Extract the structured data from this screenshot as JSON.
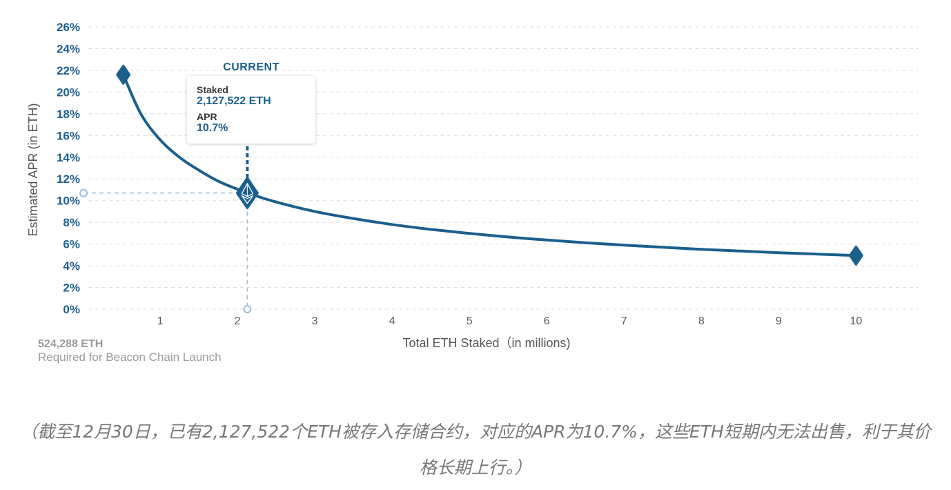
{
  "chart_data": {
    "type": "line",
    "xlabel": "Total ETH Staked（in millions)",
    "ylabel": "Estimated APR (in ETH)",
    "x_ticks": [
      "1",
      "2",
      "3",
      "4",
      "5",
      "6",
      "7",
      "8",
      "9",
      "10"
    ],
    "y_ticks": [
      "0%",
      "2%",
      "4%",
      "6%",
      "8%",
      "10%",
      "12%",
      "14%",
      "16%",
      "18%",
      "20%",
      "22%",
      "24%",
      "26%"
    ],
    "xlim": [
      0,
      10.8
    ],
    "ylim": [
      0,
      26
    ],
    "grid": "horizontal dashed",
    "series": [
      {
        "x": [
          0.524288,
          0.75,
          1.0,
          1.25,
          1.5,
          1.75,
          2.0,
          2.127522,
          2.5,
          3.0,
          3.5,
          4.0,
          4.5,
          5.0,
          5.5,
          6.0,
          6.5,
          7.0,
          7.5,
          8.0,
          8.5,
          9.0,
          9.5,
          10.0
        ],
        "y": [
          21.6,
          18.0,
          15.6,
          14.0,
          12.8,
          11.8,
          11.05,
          10.7,
          9.87,
          9.0,
          8.35,
          7.8,
          7.35,
          6.98,
          6.65,
          6.37,
          6.12,
          5.9,
          5.7,
          5.52,
          5.36,
          5.2,
          5.07,
          4.94
        ]
      }
    ],
    "markers": [
      {
        "x": 0.524288,
        "y": 21.6
      },
      {
        "x": 10.0,
        "y": 4.94
      }
    ],
    "current": {
      "x": 2.127522,
      "y": 10.7,
      "title": "CURRENT",
      "staked_label": "Staked",
      "staked_value": "2,127,522 ETH",
      "apr_label": "APR",
      "apr_value": "10.7%"
    },
    "annotation": {
      "value": "524,288 ETH",
      "text": "Required for Beacon Chain Launch"
    },
    "colors": {
      "line": "#1b5f8c",
      "grid": "#dddddd",
      "guide": "#9bbfd6",
      "tick_y": "#1b5f8c",
      "tick_x": "#555555"
    }
  },
  "caption": "（截至12月30日，已有2,127,522个ETH被存入存储合约，对应的APR为10.7%，这些ETH短期内无法出售，利于其价格长期上行。）"
}
